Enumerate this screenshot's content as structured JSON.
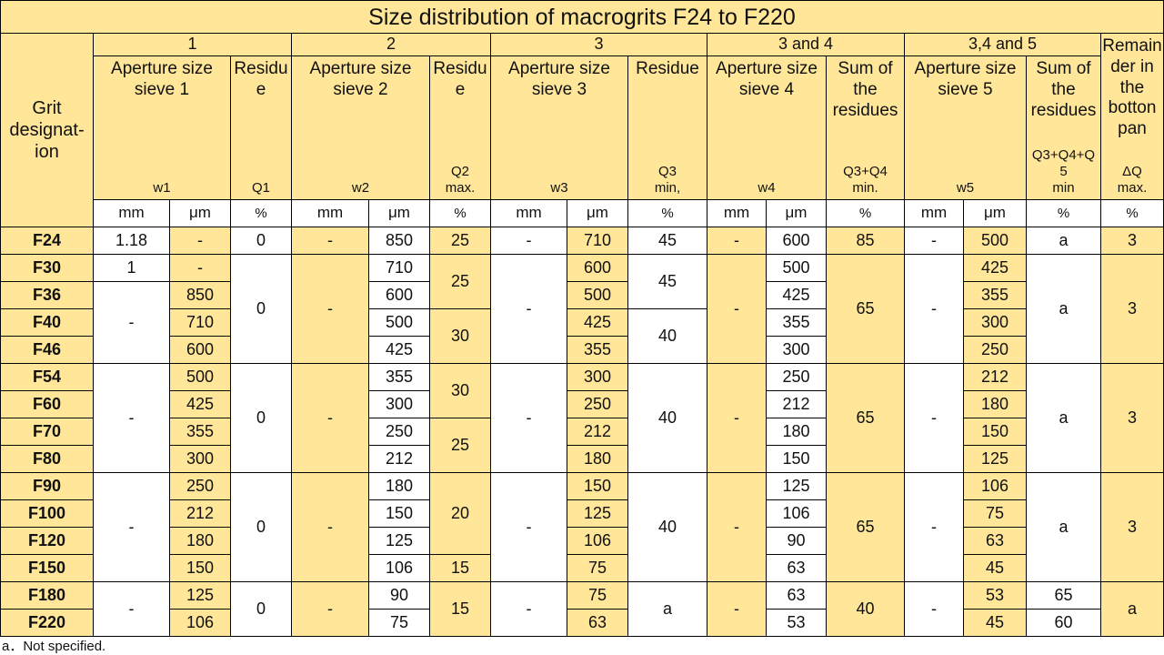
{
  "title": "Size distribution of macrogrits F24 to F220",
  "groups": [
    "1",
    "2",
    "3",
    "3 and 4",
    "3,4 and 5"
  ],
  "header": {
    "grit_designation": "Grit designat-ion",
    "aperture1": "Aperture size sieve 1",
    "w1": "w1",
    "residue1": "Residu e",
    "q1": "Q1",
    "aperture2": "Aperture size sieve 2",
    "w2": "w2",
    "residue2": "Residu e",
    "q2": "Q2",
    "q2_limit": "max.",
    "aperture3": "Aperture size sieve 3",
    "w3": "w3",
    "residue3": "Residue",
    "q3": "Q3",
    "q3_limit": "min,",
    "aperture4": "Aperture size sieve 4",
    "w4": "w4",
    "sum34": "Sum of the residues",
    "q34": "Q3+Q4",
    "q34_limit": "min.",
    "aperture5": "Aperture size sieve 5",
    "w5": "w5",
    "sum345": "Sum of the residues",
    "q345": "Q3+Q4+Q 5",
    "q345_limit": "min",
    "remainder": "Remain der in the botton pan",
    "dq": "ΔQ",
    "dq_limit": "max."
  },
  "units": {
    "mm": "mm",
    "um": "μm",
    "pct": "%"
  },
  "grits": [
    "F24",
    "F30",
    "F36",
    "F40",
    "F46",
    "F54",
    "F60",
    "F70",
    "F80",
    "F90",
    "F100",
    "F120",
    "F150",
    "F180",
    "F220"
  ],
  "w1_mm": [
    "1.18",
    "1",
    "-",
    "-",
    "-",
    "-"
  ],
  "w1_um": [
    "-",
    "-",
    "850",
    "710",
    "600",
    "500",
    "425",
    "355",
    "300",
    "250",
    "212",
    "180",
    "150",
    "125",
    "106"
  ],
  "q1": [
    "0",
    "0",
    "0",
    "0",
    "0"
  ],
  "w2_mm": [
    "-",
    "-",
    "-",
    "-",
    "-"
  ],
  "w2_um": [
    "850",
    "710",
    "600",
    "500",
    "425",
    "355",
    "300",
    "250",
    "212",
    "180",
    "150",
    "125",
    "106",
    "90",
    "75"
  ],
  "q2": [
    "25",
    "25",
    "30",
    "30",
    "25",
    "20",
    "15",
    "15"
  ],
  "w3_mm": [
    "-",
    "-",
    "-",
    "-",
    "-"
  ],
  "w3_um": [
    "710",
    "600",
    "500",
    "425",
    "355",
    "300",
    "250",
    "212",
    "180",
    "150",
    "125",
    "106",
    "75",
    "75",
    "63"
  ],
  "q3": [
    "45",
    "45",
    "40",
    "40",
    "40",
    "a"
  ],
  "w4_mm": [
    "-",
    "-",
    "-",
    "-",
    "-"
  ],
  "w4_um": [
    "600",
    "500",
    "425",
    "355",
    "300",
    "250",
    "212",
    "180",
    "150",
    "125",
    "106",
    "90",
    "63",
    "63",
    "53"
  ],
  "q34": [
    "85",
    "65",
    "65",
    "65",
    "40"
  ],
  "w5_mm": [
    "-",
    "-",
    "-",
    "-",
    "-"
  ],
  "w5_um": [
    "500",
    "425",
    "355",
    "300",
    "250",
    "212",
    "180",
    "150",
    "125",
    "106",
    "75",
    "63",
    "45",
    "53",
    "45"
  ],
  "q345": [
    "a",
    "a",
    "a",
    "a",
    "65",
    "60"
  ],
  "dq": [
    "3",
    "3",
    "3",
    "3",
    "a"
  ],
  "footnote": "a．Not specified."
}
